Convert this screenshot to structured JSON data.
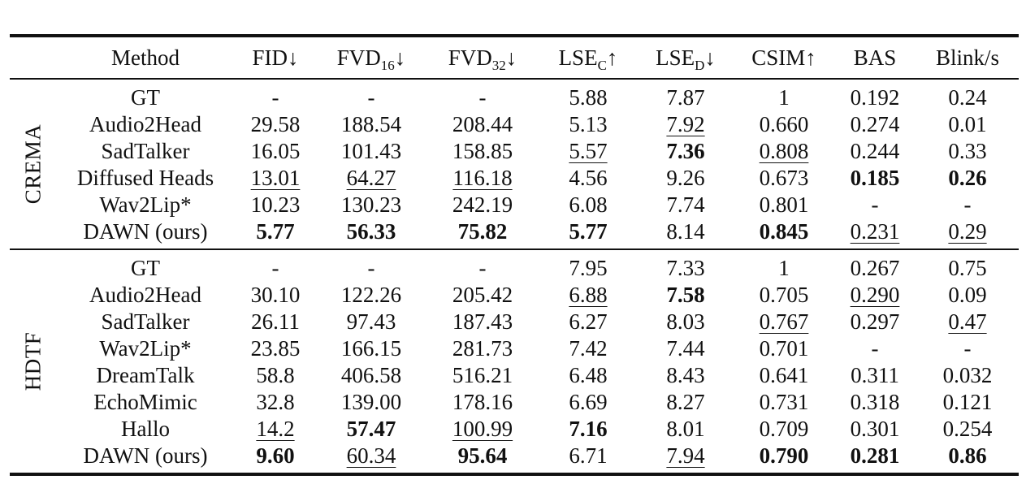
{
  "table": {
    "headers": [
      {
        "text": "Method",
        "sub": "",
        "arrow": ""
      },
      {
        "text": "FID",
        "sub": "",
        "arrow": "↓"
      },
      {
        "text": "FVD",
        "sub": "16",
        "arrow": "↓"
      },
      {
        "text": "FVD",
        "sub": "32",
        "arrow": "↓"
      },
      {
        "text": "LSE",
        "sub": "C",
        "arrow": "↑"
      },
      {
        "text": "LSE",
        "sub": "D",
        "arrow": "↓"
      },
      {
        "text": "CSIM",
        "sub": "",
        "arrow": "↑"
      },
      {
        "text": "BAS",
        "sub": "",
        "arrow": ""
      },
      {
        "text": "Blink/s",
        "sub": "",
        "arrow": ""
      }
    ],
    "groups": [
      {
        "dataset": "CREMA",
        "rows": [
          {
            "method": "GT",
            "cells": [
              {
                "v": "-",
                "s": ""
              },
              {
                "v": "-",
                "s": ""
              },
              {
                "v": "-",
                "s": ""
              },
              {
                "v": "5.88",
                "s": ""
              },
              {
                "v": "7.87",
                "s": ""
              },
              {
                "v": "1",
                "s": ""
              },
              {
                "v": "0.192",
                "s": ""
              },
              {
                "v": "0.24",
                "s": ""
              }
            ]
          },
          {
            "method": "Audio2Head",
            "cells": [
              {
                "v": "29.58",
                "s": ""
              },
              {
                "v": "188.54",
                "s": ""
              },
              {
                "v": "208.44",
                "s": ""
              },
              {
                "v": "5.13",
                "s": ""
              },
              {
                "v": "7.92",
                "s": "u"
              },
              {
                "v": "0.660",
                "s": ""
              },
              {
                "v": "0.274",
                "s": ""
              },
              {
                "v": "0.01",
                "s": ""
              }
            ]
          },
          {
            "method": "SadTalker",
            "cells": [
              {
                "v": "16.05",
                "s": ""
              },
              {
                "v": "101.43",
                "s": ""
              },
              {
                "v": "158.85",
                "s": ""
              },
              {
                "v": "5.57",
                "s": "u"
              },
              {
                "v": "7.36",
                "s": "b"
              },
              {
                "v": "0.808",
                "s": "u"
              },
              {
                "v": "0.244",
                "s": ""
              },
              {
                "v": "0.33",
                "s": ""
              }
            ]
          },
          {
            "method": "Diffused Heads",
            "cells": [
              {
                "v": "13.01",
                "s": "u"
              },
              {
                "v": "64.27",
                "s": "u"
              },
              {
                "v": "116.18",
                "s": "u"
              },
              {
                "v": "4.56",
                "s": ""
              },
              {
                "v": "9.26",
                "s": ""
              },
              {
                "v": "0.673",
                "s": ""
              },
              {
                "v": "0.185",
                "s": "b"
              },
              {
                "v": "0.26",
                "s": "b"
              }
            ]
          },
          {
            "method": "Wav2Lip*",
            "cells": [
              {
                "v": "10.23",
                "s": ""
              },
              {
                "v": "130.23",
                "s": ""
              },
              {
                "v": "242.19",
                "s": ""
              },
              {
                "v": "6.08",
                "s": ""
              },
              {
                "v": "7.74",
                "s": ""
              },
              {
                "v": "0.801",
                "s": ""
              },
              {
                "v": "-",
                "s": ""
              },
              {
                "v": "-",
                "s": ""
              }
            ]
          },
          {
            "method": "DAWN (ours)",
            "cells": [
              {
                "v": "5.77",
                "s": "b"
              },
              {
                "v": "56.33",
                "s": "b"
              },
              {
                "v": "75.82",
                "s": "b"
              },
              {
                "v": "5.77",
                "s": "b"
              },
              {
                "v": "8.14",
                "s": ""
              },
              {
                "v": "0.845",
                "s": "b"
              },
              {
                "v": "0.231",
                "s": "u"
              },
              {
                "v": "0.29",
                "s": "u"
              }
            ]
          }
        ]
      },
      {
        "dataset": "HDTF",
        "rows": [
          {
            "method": "GT",
            "cells": [
              {
                "v": "-",
                "s": ""
              },
              {
                "v": "-",
                "s": ""
              },
              {
                "v": "-",
                "s": ""
              },
              {
                "v": "7.95",
                "s": ""
              },
              {
                "v": "7.33",
                "s": ""
              },
              {
                "v": "1",
                "s": ""
              },
              {
                "v": "0.267",
                "s": ""
              },
              {
                "v": "0.75",
                "s": ""
              }
            ]
          },
          {
            "method": "Audio2Head",
            "cells": [
              {
                "v": "30.10",
                "s": ""
              },
              {
                "v": "122.26",
                "s": ""
              },
              {
                "v": "205.42",
                "s": ""
              },
              {
                "v": "6.88",
                "s": "u"
              },
              {
                "v": "7.58",
                "s": "b"
              },
              {
                "v": "0.705",
                "s": ""
              },
              {
                "v": "0.290",
                "s": "u"
              },
              {
                "v": "0.09",
                "s": ""
              }
            ]
          },
          {
            "method": "SadTalker",
            "cells": [
              {
                "v": "26.11",
                "s": ""
              },
              {
                "v": "97.43",
                "s": ""
              },
              {
                "v": "187.43",
                "s": ""
              },
              {
                "v": "6.27",
                "s": ""
              },
              {
                "v": "8.03",
                "s": ""
              },
              {
                "v": "0.767",
                "s": "u"
              },
              {
                "v": "0.297",
                "s": ""
              },
              {
                "v": "0.47",
                "s": "u"
              }
            ]
          },
          {
            "method": "Wav2Lip*",
            "cells": [
              {
                "v": "23.85",
                "s": ""
              },
              {
                "v": "166.15",
                "s": ""
              },
              {
                "v": "281.73",
                "s": ""
              },
              {
                "v": "7.42",
                "s": ""
              },
              {
                "v": "7.44",
                "s": ""
              },
              {
                "v": "0.701",
                "s": ""
              },
              {
                "v": "-",
                "s": ""
              },
              {
                "v": "-",
                "s": ""
              }
            ]
          },
          {
            "method": "DreamTalk",
            "cells": [
              {
                "v": "58.8",
                "s": ""
              },
              {
                "v": "406.58",
                "s": ""
              },
              {
                "v": "516.21",
                "s": ""
              },
              {
                "v": "6.48",
                "s": ""
              },
              {
                "v": "8.43",
                "s": ""
              },
              {
                "v": "0.641",
                "s": ""
              },
              {
                "v": "0.311",
                "s": ""
              },
              {
                "v": "0.032",
                "s": ""
              }
            ]
          },
          {
            "method": "EchoMimic",
            "cells": [
              {
                "v": "32.8",
                "s": ""
              },
              {
                "v": "139.00",
                "s": ""
              },
              {
                "v": "178.16",
                "s": ""
              },
              {
                "v": "6.69",
                "s": ""
              },
              {
                "v": "8.27",
                "s": ""
              },
              {
                "v": "0.731",
                "s": ""
              },
              {
                "v": "0.318",
                "s": ""
              },
              {
                "v": "0.121",
                "s": ""
              }
            ]
          },
          {
            "method": "Hallo",
            "cells": [
              {
                "v": "14.2",
                "s": "u"
              },
              {
                "v": "57.47",
                "s": "b"
              },
              {
                "v": "100.99",
                "s": "u"
              },
              {
                "v": "7.16",
                "s": "b"
              },
              {
                "v": "8.01",
                "s": ""
              },
              {
                "v": "0.709",
                "s": ""
              },
              {
                "v": "0.301",
                "s": ""
              },
              {
                "v": "0.254",
                "s": ""
              }
            ]
          },
          {
            "method": "DAWN (ours)",
            "cells": [
              {
                "v": "9.60",
                "s": "b"
              },
              {
                "v": "60.34",
                "s": "u"
              },
              {
                "v": "95.64",
                "s": "b"
              },
              {
                "v": "6.71",
                "s": ""
              },
              {
                "v": "7.94",
                "s": "u"
              },
              {
                "v": "0.790",
                "s": "b"
              },
              {
                "v": "0.281",
                "s": "b"
              },
              {
                "v": "0.86",
                "s": "b"
              }
            ]
          }
        ]
      }
    ]
  }
}
